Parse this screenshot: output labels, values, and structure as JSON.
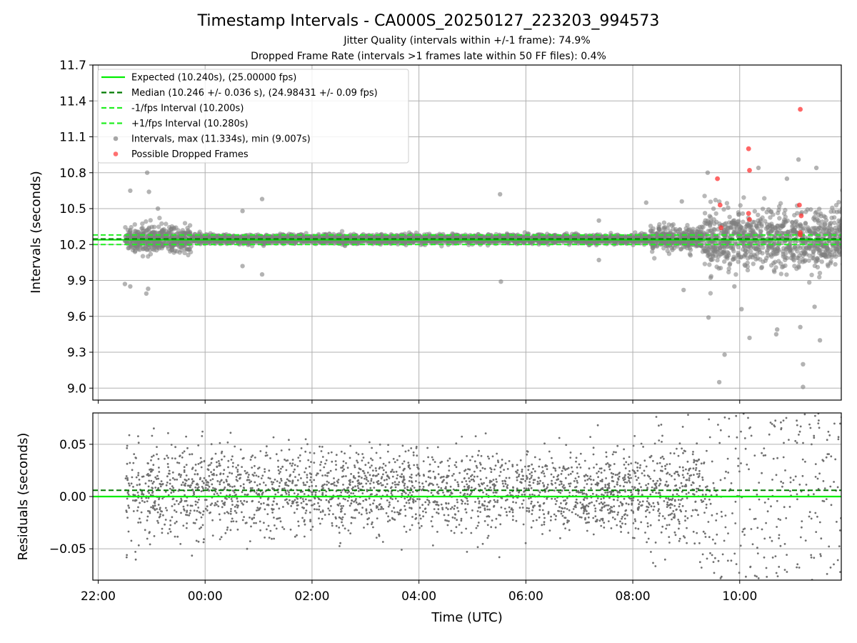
{
  "figure": {
    "title": "Timestamp Intervals - CA000S_20250127_223203_994573",
    "subtitle_1": "Jitter Quality (intervals within +/-1 frame): 74.9%",
    "subtitle_2": "Dropped Frame Rate (intervals >1 frames late within 50 FF files): 0.4%"
  },
  "colors": {
    "expected": "#00ee00",
    "median": "#007a00",
    "bound": "#22ee22",
    "interval_points": "#808080",
    "dropped_points": "#ff3333",
    "grid": "#b0b0b0"
  },
  "chart_data": [
    {
      "type": "scatter",
      "ylabel": "Intervals (seconds)",
      "ylim": [
        8.9,
        11.7
      ],
      "yticks": [
        9.0,
        9.3,
        9.6,
        9.9,
        10.2,
        10.5,
        10.8,
        11.1,
        11.4,
        11.7
      ],
      "ytick_labels": [
        "9.0",
        "9.3",
        "9.6",
        "9.9",
        "10.2",
        "10.5",
        "10.8",
        "11.1",
        "11.4",
        "11.7"
      ],
      "x_hours_range": [
        21.9,
        35.9
      ],
      "grid": true,
      "legend_position": "top-left",
      "legend": [
        {
          "label": "Expected (10.240s), (25.00000 fps)",
          "style": "solid-line",
          "color": "#00ee00"
        },
        {
          "label": "Median (10.246 +/- 0.036 s), (24.98431 +/- 0.09 fps)",
          "style": "dashed-line",
          "color": "#007a00"
        },
        {
          "label": "-1/fps Interval (10.200s)",
          "style": "dashed-line",
          "color": "#22ee22"
        },
        {
          "label": "+1/fps Interval (10.280s)",
          "style": "dashed-line",
          "color": "#22ee22"
        },
        {
          "label": "Intervals, max (11.334s), min (9.007s)",
          "style": "marker",
          "color": "#808080"
        },
        {
          "label": "Possible Dropped Frames",
          "style": "marker",
          "color": "#ff3333"
        }
      ],
      "reference_lines": {
        "expected": 10.24,
        "median": 10.246,
        "minus_one_fps": 10.2,
        "plus_one_fps": 10.28
      },
      "interval_stats": {
        "max": 11.334,
        "min": 9.007
      },
      "dropped_frames": [
        {
          "t": "09:35",
          "y": 10.75
        },
        {
          "t": "09:38",
          "y": 10.53
        },
        {
          "t": "09:39",
          "y": 10.34
        },
        {
          "t": "10:10",
          "y": 11.0
        },
        {
          "t": "10:11",
          "y": 10.82
        },
        {
          "t": "10:10",
          "y": 10.46
        },
        {
          "t": "10:11",
          "y": 10.41
        },
        {
          "t": "11:07",
          "y": 10.53
        },
        {
          "t": "11:09",
          "y": 10.44
        },
        {
          "t": "11:08",
          "y": 10.3
        },
        {
          "t": "11:08",
          "y": 11.33
        },
        {
          "t": "11:08",
          "y": 10.28
        }
      ],
      "notable_intervals": [
        {
          "t": "22:30",
          "y": 9.87
        },
        {
          "t": "22:36",
          "y": 9.85
        },
        {
          "t": "22:36",
          "y": 10.65
        },
        {
          "t": "22:55",
          "y": 10.8
        },
        {
          "t": "22:57",
          "y": 10.64
        },
        {
          "t": "22:54",
          "y": 9.79
        },
        {
          "t": "22:56",
          "y": 9.83
        },
        {
          "t": "23:07",
          "y": 10.5
        },
        {
          "t": "00:42",
          "y": 10.48
        },
        {
          "t": "00:42",
          "y": 10.02
        },
        {
          "t": "01:04",
          "y": 10.58
        },
        {
          "t": "01:04",
          "y": 9.95
        },
        {
          "t": "05:31",
          "y": 10.62
        },
        {
          "t": "05:32",
          "y": 9.89
        },
        {
          "t": "07:22",
          "y": 10.4
        },
        {
          "t": "07:22",
          "y": 10.07
        },
        {
          "t": "08:15",
          "y": 10.55
        },
        {
          "t": "08:55",
          "y": 10.56
        },
        {
          "t": "08:57",
          "y": 9.82
        },
        {
          "t": "09:24",
          "y": 10.8
        },
        {
          "t": "09:25",
          "y": 9.59
        },
        {
          "t": "09:37",
          "y": 9.05
        },
        {
          "t": "09:43",
          "y": 9.28
        },
        {
          "t": "09:54",
          "y": 9.85
        },
        {
          "t": "10:02",
          "y": 9.66
        },
        {
          "t": "10:11",
          "y": 9.42
        },
        {
          "t": "10:21",
          "y": 10.84
        },
        {
          "t": "10:41",
          "y": 9.45
        },
        {
          "t": "10:42",
          "y": 9.49
        },
        {
          "t": "10:53",
          "y": 10.75
        },
        {
          "t": "11:06",
          "y": 10.91
        },
        {
          "t": "11:08",
          "y": 9.51
        },
        {
          "t": "11:11",
          "y": 9.2
        },
        {
          "t": "11:11",
          "y": 9.01
        },
        {
          "t": "11:26",
          "y": 10.84
        },
        {
          "t": "11:30",
          "y": 9.4
        },
        {
          "t": "11:24",
          "y": 9.68
        }
      ],
      "series_density": [
        {
          "from": "22:30",
          "to": "23:45",
          "spread": 0.12
        },
        {
          "from": "23:45",
          "to": "08:20",
          "spread": 0.04
        },
        {
          "from": "08:20",
          "to": "09:20",
          "spread": 0.1
        },
        {
          "from": "09:20",
          "to": "11:59",
          "spread": 0.27
        }
      ]
    },
    {
      "type": "scatter",
      "ylabel": "Residuals (seconds)",
      "ylim": [
        -0.08,
        0.08
      ],
      "yticks": [
        -0.05,
        0.0,
        0.05
      ],
      "ytick_labels": [
        "−0.05",
        "0.00",
        "0.05"
      ],
      "xlabel": "Time (UTC)",
      "xticks": [
        "22:00",
        "00:00",
        "02:00",
        "04:00",
        "06:00",
        "08:00",
        "10:00"
      ],
      "x_hours_range": [
        21.9,
        35.9
      ],
      "grid": true,
      "reference_lines": {
        "expected": 0.0,
        "median": 0.006
      },
      "series_density": [
        {
          "from": "22:30",
          "to": "00:00",
          "spread": 0.045
        },
        {
          "from": "00:00",
          "to": "08:20",
          "spread": 0.035
        },
        {
          "from": "08:20",
          "to": "09:25",
          "spread": 0.05
        },
        {
          "from": "09:25",
          "to": "11:59",
          "spread": 0.09
        }
      ]
    }
  ]
}
